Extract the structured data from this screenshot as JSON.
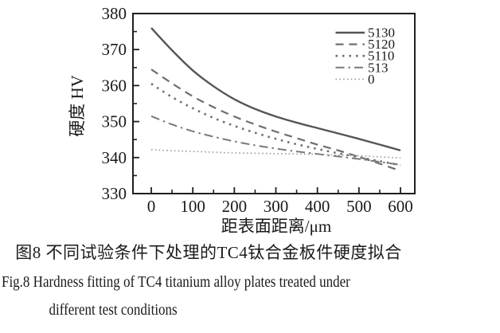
{
  "figure": {
    "caption_zh": "图8  不同试验条件下处理的TC4钛合金板件硬度拟合",
    "caption_en_line1": "Fig.8  Hardness fitting of TC4 titanium alloy plates treated under",
    "caption_en_line2": "different test conditions"
  },
  "chart_data": {
    "type": "line",
    "title": "",
    "xlabel": "距表面距离/μm",
    "ylabel": "硬度 HV",
    "xlim": [
      0,
      600
    ],
    "ylim": [
      330,
      380
    ],
    "grid": false,
    "legend_position": "top-right",
    "x": [
      0,
      50,
      100,
      150,
      200,
      250,
      300,
      350,
      400,
      450,
      500,
      550,
      600
    ],
    "series": [
      {
        "name": "5130",
        "style": "solid",
        "color": "#555555",
        "values": [
          376.0,
          369.8,
          364.2,
          359.8,
          356.2,
          353.5,
          351.4,
          349.7,
          348.2,
          346.7,
          345.2,
          343.6,
          342.0
        ]
      },
      {
        "name": "5120",
        "style": "dashed",
        "color": "#6e6e6e",
        "values": [
          364.5,
          360.6,
          357.0,
          354.0,
          351.4,
          349.2,
          347.2,
          345.4,
          343.6,
          342.0,
          340.2,
          338.3,
          336.3
        ]
      },
      {
        "name": "5110",
        "style": "dotted",
        "color": "#6e6e6e",
        "values": [
          360.5,
          356.8,
          353.7,
          351.0,
          348.8,
          346.9,
          345.2,
          343.7,
          342.4,
          341.2,
          340.1,
          339.0,
          337.9
        ]
      },
      {
        "name": "513",
        "style": "dash-dot",
        "color": "#7a7a7a",
        "values": [
          351.5,
          349.2,
          347.3,
          345.8,
          344.5,
          343.4,
          342.5,
          341.7,
          341.0,
          340.3,
          339.6,
          338.8,
          338.0
        ]
      },
      {
        "name": "0",
        "style": "fine-dotted",
        "color": "#9a9a9a",
        "values": [
          342.2,
          341.9,
          341.7,
          341.5,
          341.3,
          341.2,
          341.1,
          341.0,
          340.9,
          340.7,
          340.5,
          340.2,
          339.9
        ]
      }
    ],
    "xticks_major": [
      0,
      100,
      200,
      300,
      400,
      500,
      600
    ],
    "xticks_minor": [
      50,
      150,
      250,
      350,
      450,
      550
    ],
    "yticks_major": [
      330,
      340,
      350,
      360,
      370,
      380
    ],
    "yticks_minor": [
      335,
      345,
      355,
      365,
      375
    ]
  },
  "colors": {
    "axis": "#1f1f1f",
    "text": "#1a1a1a",
    "background": "#ffffff"
  }
}
